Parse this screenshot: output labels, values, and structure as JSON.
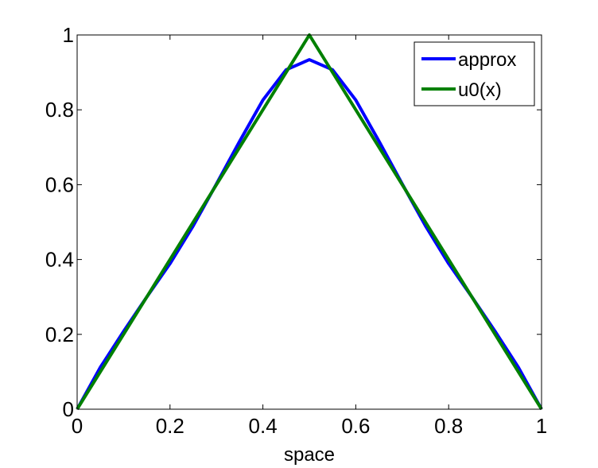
{
  "chart_data": {
    "type": "line",
    "title": "",
    "xlabel": "space",
    "ylabel": "",
    "xlim": [
      0,
      1
    ],
    "ylim": [
      0,
      1
    ],
    "xticks": [
      "0",
      "0.2",
      "0.4",
      "0.6",
      "0.8",
      "1"
    ],
    "yticks": [
      "0",
      "0.2",
      "0.4",
      "0.6",
      "0.8",
      "1"
    ],
    "grid": false,
    "legend_position": "top-right",
    "series": [
      {
        "name": "approx",
        "color": "#0000ff",
        "x": [
          0,
          0.05,
          0.1,
          0.15,
          0.2,
          0.25,
          0.3,
          0.35,
          0.4,
          0.45,
          0.5,
          0.55,
          0.6,
          0.65,
          0.7,
          0.75,
          0.8,
          0.85,
          0.9,
          0.95,
          1
        ],
        "y": [
          0,
          0.112,
          0.208,
          0.3,
          0.389,
          0.49,
          0.602,
          0.716,
          0.826,
          0.907,
          0.934,
          0.907,
          0.826,
          0.716,
          0.602,
          0.49,
          0.389,
          0.3,
          0.208,
          0.112,
          0
        ]
      },
      {
        "name": "u0(x)",
        "color": "#008000",
        "x": [
          0,
          0.5,
          1
        ],
        "y": [
          0,
          1,
          0
        ]
      }
    ]
  }
}
